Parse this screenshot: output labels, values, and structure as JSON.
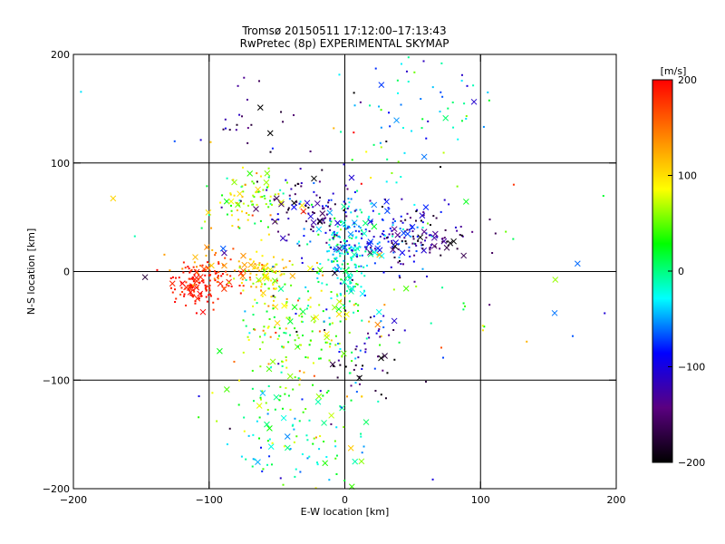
{
  "chart_data": {
    "type": "scatter",
    "title": "Tromsø 20150511 17:12:00–17:13:43",
    "subtitle": "RwPretec (8p) EXPERIMENTAL SKYMAP",
    "xlabel": "E-W location [km]",
    "ylabel": "N-S location [km]",
    "xlim": [
      -200,
      200
    ],
    "ylim": [
      -200,
      200
    ],
    "xticks": [
      -200,
      -100,
      0,
      100,
      200
    ],
    "yticks": [
      -200,
      -100,
      0,
      100,
      200
    ],
    "grid": true,
    "colorbar": {
      "label": "[m/s]",
      "range": [
        -200,
        200
      ],
      "ticks": [
        200,
        100,
        0,
        -100,
        -200
      ],
      "colors": [
        "#000000",
        "#5a0080",
        "#0000ff",
        "#00ffff",
        "#00ff00",
        "#ffff00",
        "#ff8000",
        "#ff0000"
      ]
    },
    "marker_types": [
      "dot",
      "x"
    ],
    "clusters": [
      {
        "center": [
          -108,
          -12
        ],
        "spread": [
          12,
          8
        ],
        "velocity": 190,
        "vspread": 12,
        "count": 120
      },
      {
        "center": [
          -88,
          0
        ],
        "spread": [
          18,
          10
        ],
        "velocity": 160,
        "vspread": 25,
        "count": 60
      },
      {
        "center": [
          -58,
          0
        ],
        "spread": [
          10,
          8
        ],
        "velocity": 95,
        "vspread": 25,
        "count": 70
      },
      {
        "center": [
          -70,
          68
        ],
        "spread": [
          16,
          14
        ],
        "velocity": 70,
        "vspread": 40,
        "count": 90
      },
      {
        "center": [
          -35,
          -45
        ],
        "spread": [
          22,
          25
        ],
        "velocity": 60,
        "vspread": 45,
        "count": 160
      },
      {
        "center": [
          -40,
          -140
        ],
        "spread": [
          25,
          30
        ],
        "velocity": 10,
        "vspread": 50,
        "count": 140
      },
      {
        "center": [
          0,
          10
        ],
        "spread": [
          10,
          25
        ],
        "velocity": -15,
        "vspread": 25,
        "count": 160
      },
      {
        "center": [
          -25,
          60
        ],
        "spread": [
          18,
          20
        ],
        "velocity": -140,
        "vspread": 40,
        "count": 90
      },
      {
        "center": [
          25,
          30
        ],
        "spread": [
          25,
          18
        ],
        "velocity": -80,
        "vspread": 40,
        "count": 150
      },
      {
        "center": [
          60,
          30
        ],
        "spread": [
          18,
          14
        ],
        "velocity": -150,
        "vspread": 35,
        "count": 80
      },
      {
        "center": [
          15,
          -75
        ],
        "spread": [
          15,
          20
        ],
        "velocity": -150,
        "vspread": 50,
        "count": 50
      },
      {
        "center": [
          55,
          150
        ],
        "spread": [
          25,
          30
        ],
        "velocity": -40,
        "vspread": 40,
        "count": 60
      },
      {
        "center": [
          -70,
          140
        ],
        "spread": [
          20,
          15
        ],
        "velocity": -160,
        "vspread": 40,
        "count": 20
      },
      {
        "center": [
          0,
          0
        ],
        "spread": [
          90,
          90
        ],
        "velocity": 0,
        "vspread": 150,
        "count": 120
      }
    ]
  }
}
